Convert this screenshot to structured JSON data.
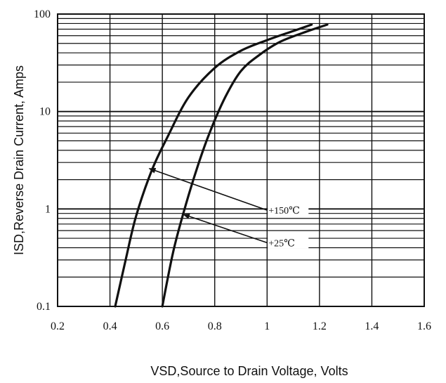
{
  "chart_data": {
    "type": "line",
    "title": "",
    "xlabel": "VSD,Source to Drain Voltage, Volts",
    "ylabel": "ISD,Reverse Drain Current, Amps",
    "xlim": [
      0.2,
      1.6
    ],
    "ylim": [
      0.1,
      100
    ],
    "y_scale": "log",
    "x_ticks": [
      0.2,
      0.4,
      0.6,
      0.8,
      1.0,
      1.2,
      1.4,
      1.6
    ],
    "x_tick_labels": [
      "0.2",
      "0.4",
      "0.6",
      "0.8",
      "1",
      "1.2",
      "1.4",
      "1.6"
    ],
    "y_ticks": [
      0.1,
      1,
      10,
      100
    ],
    "y_tick_labels": [
      "0.1",
      "1",
      "10",
      "100"
    ],
    "grid": true,
    "legend": "none",
    "series": [
      {
        "name": "+150℃",
        "x": [
          0.42,
          0.46,
          0.5,
          0.56,
          0.62,
          0.7,
          0.8,
          0.9,
          1.0,
          1.1,
          1.17
        ],
        "y": [
          0.1,
          0.3,
          0.85,
          2.5,
          5.5,
          14,
          28,
          42,
          54,
          67,
          78
        ]
      },
      {
        "name": "+25℃",
        "x": [
          0.6,
          0.64,
          0.68,
          0.73,
          0.78,
          0.84,
          0.9,
          0.97,
          1.05,
          1.15,
          1.23
        ],
        "y": [
          0.1,
          0.35,
          0.9,
          2.5,
          6,
          14,
          26,
          38,
          52,
          66,
          78
        ]
      }
    ],
    "annotations": [
      {
        "label": "+150℃",
        "series_name": "+150℃",
        "point_x": 0.55,
        "point_y": 2.6,
        "label_x": 1.0,
        "label_y": 0.97
      },
      {
        "label": "+25℃",
        "series_name": "+25℃",
        "point_x": 0.68,
        "point_y": 0.88,
        "label_x": 1.0,
        "label_y": 0.45
      }
    ]
  }
}
